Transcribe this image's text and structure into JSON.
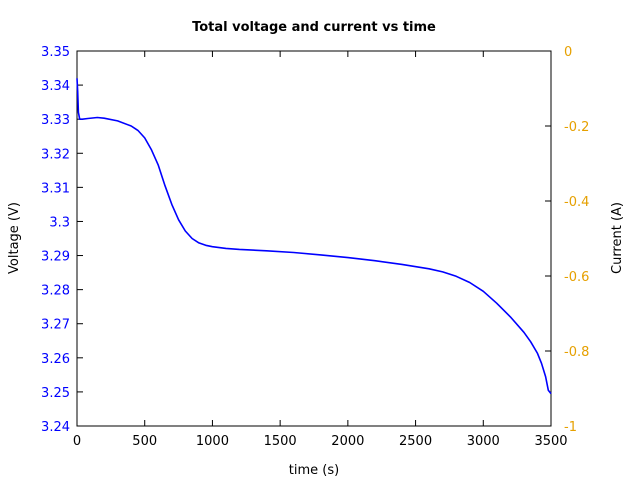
{
  "chart_data": {
    "type": "line",
    "title": "Total voltage and current vs time",
    "xlabel": "time (s)",
    "ylabel": "Voltage (V)",
    "y2label": "Current (A)",
    "xlim": [
      0,
      3500
    ],
    "ylim": [
      3.24,
      3.35
    ],
    "y2lim": [
      -1,
      0
    ],
    "xticks": [
      0,
      500,
      1000,
      1500,
      2000,
      2500,
      3000,
      3500
    ],
    "xtick_labels": [
      "0",
      "500",
      "1000",
      "1500",
      "2000",
      "2500",
      "3000",
      "3500"
    ],
    "yticks": [
      3.24,
      3.25,
      3.26,
      3.27,
      3.28,
      3.29,
      3.3,
      3.31,
      3.32,
      3.33,
      3.34,
      3.35
    ],
    "ytick_labels": [
      "3.24",
      "3.25",
      "3.26",
      "3.27",
      "3.28",
      "3.29",
      "3.3",
      "3.31",
      "3.32",
      "3.33",
      "3.34",
      "3.35"
    ],
    "y2ticks": [
      0,
      -0.2,
      -0.4,
      -0.6,
      -0.8,
      -1
    ],
    "y2tick_labels": [
      "0",
      "-0.2",
      "-0.4",
      "-0.6",
      "-0.8",
      "-1"
    ],
    "grid": false,
    "legend": "none",
    "left_axis_color": "#0000ff",
    "right_axis_color": "#e6a000",
    "series": [
      {
        "color": "#0000ff",
        "axis": "left",
        "x": [
          0,
          5,
          10,
          20,
          40,
          80,
          150,
          200,
          300,
          400,
          450,
          500,
          550,
          600,
          650,
          700,
          750,
          800,
          850,
          900,
          950,
          1000,
          1100,
          1200,
          1400,
          1600,
          1800,
          2000,
          2200,
          2400,
          2600,
          2700,
          2800,
          2900,
          3000,
          3100,
          3200,
          3300,
          3350,
          3400,
          3430,
          3460,
          3480,
          3500
        ],
        "y": [
          3.342,
          3.338,
          3.332,
          3.33,
          3.33,
          3.3302,
          3.3305,
          3.3303,
          3.3295,
          3.328,
          3.3267,
          3.3245,
          3.321,
          3.3165,
          3.3105,
          3.305,
          3.3005,
          3.2972,
          3.295,
          3.2937,
          3.293,
          3.2926,
          3.2921,
          3.2918,
          3.2914,
          3.2909,
          3.2902,
          3.2894,
          3.2885,
          3.2874,
          3.2861,
          3.2852,
          3.2839,
          3.2821,
          3.2795,
          3.276,
          3.272,
          3.2675,
          3.2647,
          3.2613,
          3.2584,
          3.2545,
          3.2505,
          3.2495
        ]
      }
    ]
  }
}
